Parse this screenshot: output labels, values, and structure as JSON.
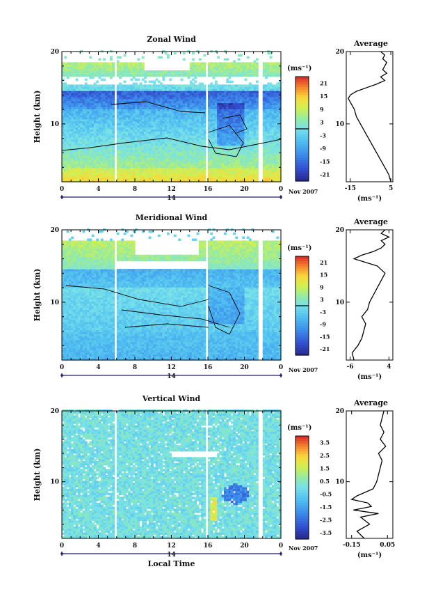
{
  "chart_data": [
    {
      "type": "heatmap",
      "title": "Zonal Wind",
      "ylabel": "Height (km)",
      "xlabel": "",
      "xlim": [
        0,
        24
      ],
      "ylim": [
        2,
        20
      ],
      "x_ticks": [
        "0",
        "4",
        "8",
        "12",
        "16",
        "20",
        "0"
      ],
      "y_ticks": [
        "10",
        "20"
      ],
      "day_label": "14",
      "date_label": "Nov 2007",
      "colorbar": {
        "unit": "(ms⁻¹)",
        "ticks": [
          "21",
          "15",
          "9",
          "3",
          "-3",
          "-9",
          "-15",
          "-21"
        ],
        "range": [
          -24,
          24
        ]
      },
      "profile": {
        "title": "Average",
        "xlabel": "(ms⁻¹)",
        "x_ticks": [
          "-15",
          "5"
        ],
        "xlim": [
          -17,
          6
        ],
        "y_ticks": [
          "10",
          "20"
        ],
        "heights": [
          2,
          3,
          4,
          5,
          6,
          7,
          8,
          9,
          10,
          11,
          12,
          12.5,
          13,
          13.5,
          14,
          14.5,
          15,
          15.5,
          16,
          16.5,
          17,
          17.5,
          18,
          18.5,
          19,
          19.5,
          20
        ],
        "values": [
          5,
          4,
          2,
          0,
          -2,
          -4,
          -6,
          -8,
          -10,
          -12,
          -13,
          -14,
          -15,
          -16,
          -15,
          -12,
          -7,
          -2,
          2,
          0,
          3,
          1,
          2,
          3,
          1,
          2,
          0
        ]
      }
    },
    {
      "type": "heatmap",
      "title": "Meridional Wind",
      "ylabel": "Height (km)",
      "xlabel": "",
      "xlim": [
        0,
        24
      ],
      "ylim": [
        2,
        20
      ],
      "x_ticks": [
        "0",
        "4",
        "8",
        "12",
        "16",
        "20",
        "0"
      ],
      "y_ticks": [
        "10",
        "20"
      ],
      "day_label": "14",
      "date_label": "Nov 2007",
      "colorbar": {
        "unit": "(ms⁻¹)",
        "ticks": [
          "21",
          "15",
          "9",
          "3",
          "-3",
          "-9",
          "-15",
          "-21"
        ],
        "range": [
          -24,
          24
        ]
      },
      "profile": {
        "title": "Average",
        "xlabel": "(ms⁻¹)",
        "x_ticks": [
          "-6",
          "4"
        ],
        "xlim": [
          -7,
          5
        ],
        "y_ticks": [
          "10",
          "20"
        ],
        "heights": [
          2,
          3,
          4,
          5,
          6,
          7,
          8,
          9,
          10,
          11,
          12,
          13,
          14,
          15,
          15.5,
          16,
          16.5,
          17,
          17.5,
          18,
          18.5,
          19,
          19.5,
          20
        ],
        "values": [
          -5,
          -5.5,
          -4,
          -3,
          -2.5,
          -2,
          -3,
          -1.5,
          -1,
          0,
          1,
          2,
          3,
          1,
          -2,
          -5,
          -3,
          0,
          2,
          3,
          2,
          4,
          2,
          3
        ]
      }
    },
    {
      "type": "heatmap",
      "title": "Vertical Wind",
      "ylabel": "Height (km)",
      "xlabel": "Local Time",
      "xlim": [
        0,
        24
      ],
      "ylim": [
        2,
        20
      ],
      "x_ticks": [
        "0",
        "4",
        "8",
        "12",
        "16",
        "20",
        "0"
      ],
      "y_ticks": [
        "10",
        "20"
      ],
      "day_label": "14",
      "date_label": "Nov 2007",
      "colorbar": {
        "unit": "(ms⁻¹)",
        "ticks": [
          "3.5",
          "2.5",
          "1.5",
          "0.5",
          "-0.5",
          "-1.5",
          "-2.5",
          "-3.5"
        ],
        "range": [
          -4,
          4
        ]
      },
      "profile": {
        "title": "Average",
        "xlabel": "(ms⁻¹)",
        "x_ticks": [
          "-0.15",
          "0.05"
        ],
        "xlim": [
          -0.18,
          0.08
        ],
        "y_ticks": [
          "10",
          "20"
        ],
        "heights": [
          2,
          3,
          4,
          5,
          5.5,
          6,
          6.5,
          7,
          7.5,
          8,
          9,
          10,
          11,
          12,
          13,
          14,
          15,
          16,
          17,
          18,
          19,
          20
        ],
        "values": [
          -0.08,
          -0.12,
          -0.05,
          -0.1,
          0.0,
          -0.14,
          -0.04,
          -0.06,
          -0.15,
          -0.12,
          -0.03,
          -0.01,
          0.0,
          0.01,
          0.02,
          0.0,
          0.04,
          0.01,
          0.03,
          0.01,
          0.02,
          0.03
        ]
      }
    }
  ]
}
